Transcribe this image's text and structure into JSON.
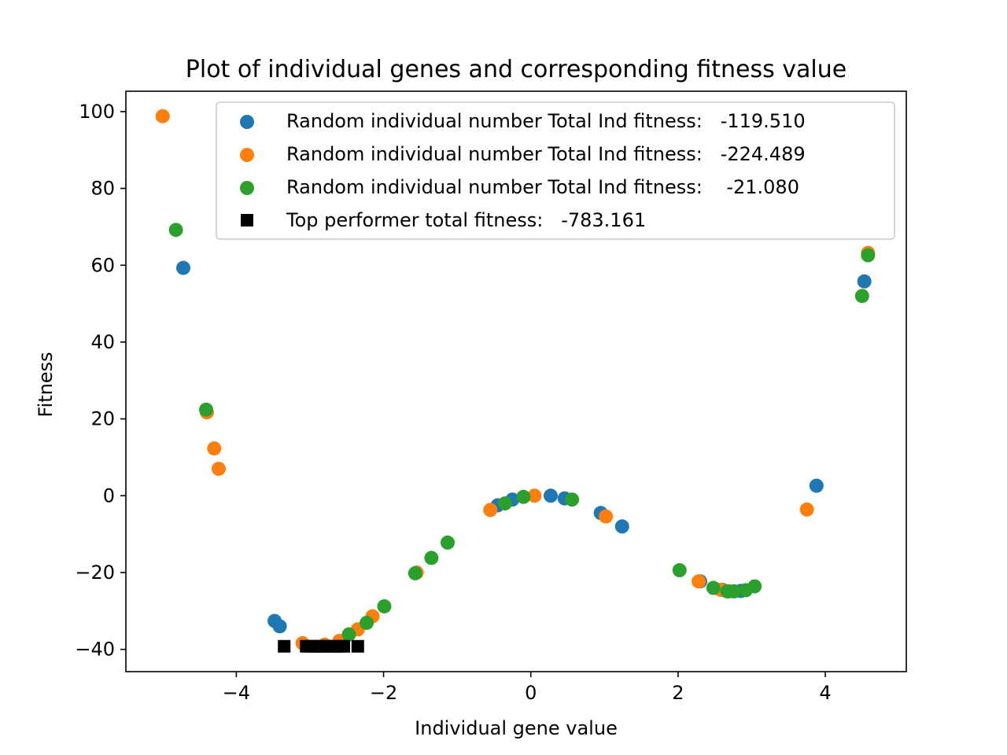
{
  "chart_data": {
    "type": "scatter",
    "title": "Plot of individual genes and corresponding fitness value",
    "xlabel": "Individual gene value",
    "ylabel": "Fitness",
    "xlim": [
      -5.5,
      5.1
    ],
    "ylim": [
      -45.8,
      105.3
    ],
    "x_ticks": [
      -4,
      -2,
      0,
      2,
      4
    ],
    "x_tick_labels": [
      "−4",
      "−2",
      "0",
      "2",
      "4"
    ],
    "y_ticks": [
      -40,
      -20,
      0,
      20,
      40,
      60,
      80,
      100
    ],
    "y_tick_labels": [
      "−40",
      "−20",
      "0",
      "20",
      "40",
      "60",
      "80",
      "100"
    ],
    "grid": false,
    "legend_position": "upper-right",
    "series": [
      {
        "name": "Random individual number Total Ind fitness:   -119.510",
        "color": "#1f77b4",
        "marker": "circle",
        "points": [
          [
            -4.72,
            59.3
          ],
          [
            -3.48,
            -32.6
          ],
          [
            -3.41,
            -34.0
          ],
          [
            -0.45,
            -2.5
          ],
          [
            -0.25,
            -1.0
          ],
          [
            0.27,
            0.0
          ],
          [
            0.46,
            -0.7
          ],
          [
            0.95,
            -4.5
          ],
          [
            1.24,
            -8.0
          ],
          [
            2.3,
            -22.3
          ],
          [
            2.6,
            -24.5
          ],
          [
            2.85,
            -24.8
          ],
          [
            3.88,
            2.6
          ],
          [
            4.53,
            55.8
          ]
        ]
      },
      {
        "name": "Random individual number Total Ind fitness:   -224.489",
        "color": "#ff7f0e",
        "marker": "circle",
        "points": [
          [
            -5.0,
            98.8
          ],
          [
            -4.4,
            21.7
          ],
          [
            -4.3,
            12.3
          ],
          [
            -4.24,
            7.0
          ],
          [
            -3.1,
            -38.4
          ],
          [
            -2.8,
            -38.8
          ],
          [
            -2.6,
            -37.8
          ],
          [
            -2.35,
            -34.8
          ],
          [
            -2.15,
            -31.4
          ],
          [
            -1.55,
            -20.0
          ],
          [
            -0.55,
            -3.7
          ],
          [
            0.05,
            0.0
          ],
          [
            1.02,
            -5.4
          ],
          [
            2.28,
            -22.3
          ],
          [
            2.58,
            -24.5
          ],
          [
            2.7,
            -24.9
          ],
          [
            3.75,
            -3.6
          ],
          [
            4.58,
            63.2
          ]
        ]
      },
      {
        "name": "Random individual number Total Ind fitness:    -21.080",
        "color": "#2ca02c",
        "marker": "circle",
        "points": [
          [
            -4.82,
            69.2
          ],
          [
            -4.41,
            22.4
          ],
          [
            -2.47,
            -36.1
          ],
          [
            -2.23,
            -33.1
          ],
          [
            -1.99,
            -28.8
          ],
          [
            -1.57,
            -20.2
          ],
          [
            -1.35,
            -16.2
          ],
          [
            -1.13,
            -12.2
          ],
          [
            -0.35,
            -2.0
          ],
          [
            -0.1,
            -0.3
          ],
          [
            0.56,
            -1.0
          ],
          [
            2.02,
            -19.4
          ],
          [
            2.48,
            -24.0
          ],
          [
            2.67,
            -24.9
          ],
          [
            2.76,
            -24.9
          ],
          [
            2.92,
            -24.6
          ],
          [
            3.04,
            -23.6
          ],
          [
            4.5,
            52.0
          ],
          [
            4.58,
            62.6
          ]
        ]
      },
      {
        "name": "Top performer total fitness:   -783.161",
        "color": "#000000",
        "marker": "square",
        "points": [
          [
            -3.35,
            -39.2
          ],
          [
            -3.05,
            -39.2
          ],
          [
            -2.98,
            -39.2
          ],
          [
            -2.92,
            -39.2
          ],
          [
            -2.86,
            -39.2
          ],
          [
            -2.79,
            -39.2
          ],
          [
            -2.73,
            -39.2
          ],
          [
            -2.66,
            -39.2
          ],
          [
            -2.6,
            -39.2
          ],
          [
            -2.54,
            -39.2
          ],
          [
            -2.35,
            -39.2
          ]
        ]
      }
    ]
  }
}
